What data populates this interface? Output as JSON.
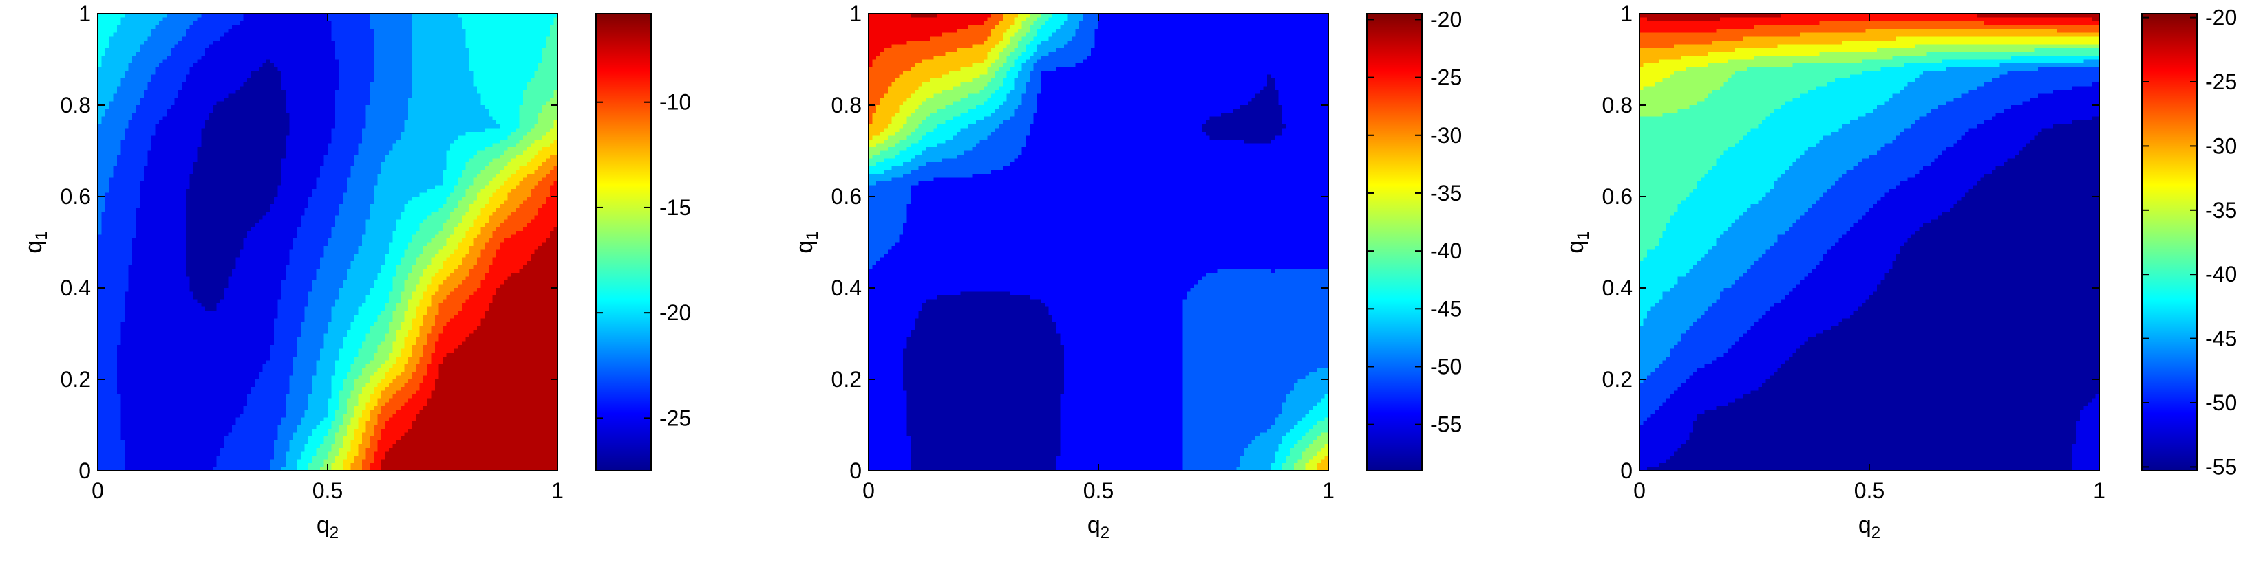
{
  "chart_data": [
    {
      "type": "contourf",
      "xlabel": "q",
      "xlabel_sub": "2",
      "ylabel": "q",
      "ylabel_sub": "1",
      "xlim": [
        0,
        1
      ],
      "ylim": [
        0,
        1
      ],
      "xticks": [
        "0",
        "0.5",
        "1"
      ],
      "yticks": [
        "0",
        "0.2",
        "0.4",
        "0.6",
        "0.8",
        "1"
      ],
      "colormap": "jet",
      "clim": [
        -27.5,
        -5.8
      ],
      "colorbar_ticks": [
        "-10",
        "-15",
        "-20",
        "-25"
      ],
      "colorbar_tick_values": [
        -10,
        -15,
        -20,
        -25
      ],
      "levels": [
        -26,
        -24.5,
        -23,
        -21.5,
        -20,
        -18.5,
        -17,
        -15.5,
        -14,
        -12.5,
        -11,
        -9.5,
        -8
      ],
      "field": {
        "x": [
          0,
          0.125,
          0.25,
          0.375,
          0.5,
          0.625,
          0.75,
          0.875,
          1
        ],
        "y": [
          0,
          0.125,
          0.25,
          0.375,
          0.5,
          0.625,
          0.75,
          0.875,
          1
        ],
        "z": [
          [
            -24,
            -25,
            -24.5,
            -23,
            -16,
            -7,
            -5.8,
            -5.8,
            -5.8
          ],
          [
            -24,
            -25.3,
            -25,
            -24,
            -20,
            -10,
            -6.5,
            -5.8,
            -5.8
          ],
          [
            -24,
            -25.5,
            -25.3,
            -24.5,
            -21,
            -16,
            -8,
            -6.5,
            -5.8
          ],
          [
            -23.5,
            -25.6,
            -26.2,
            -25,
            -22,
            -19,
            -11,
            -7.5,
            -6.2
          ],
          [
            -23,
            -25.4,
            -26.6,
            -25.5,
            -23,
            -20.5,
            -16,
            -9.5,
            -7.5
          ],
          [
            -22.5,
            -25.2,
            -26.6,
            -26.4,
            -24,
            -21,
            -20,
            -14,
            -9
          ],
          [
            -21.5,
            -24.5,
            -26.3,
            -26.6,
            -24.8,
            -22,
            -20.5,
            -20,
            -15
          ],
          [
            -20,
            -23,
            -25.5,
            -26.2,
            -25,
            -22.5,
            -20.5,
            -19.5,
            -18
          ],
          [
            -19,
            -21,
            -23.5,
            -25.2,
            -24.5,
            -22.5,
            -20.2,
            -19.5,
            -18.5
          ]
        ]
      }
    },
    {
      "type": "contourf",
      "xlabel": "q",
      "xlabel_sub": "2",
      "ylabel": "q",
      "ylabel_sub": "1",
      "xlim": [
        0,
        1
      ],
      "ylim": [
        0,
        1
      ],
      "xticks": [
        "0",
        "0.5",
        "1"
      ],
      "yticks": [
        "0",
        "0.2",
        "0.4",
        "0.6",
        "0.8",
        "1"
      ],
      "colormap": "jet",
      "clim": [
        -59,
        -19.5
      ],
      "colorbar_ticks": [
        "-20",
        "-25",
        "-30",
        "-35",
        "-40",
        "-45",
        "-50",
        "-55"
      ],
      "colorbar_tick_values": [
        -20,
        -25,
        -30,
        -35,
        -40,
        -45,
        -50,
        -55
      ],
      "levels": [
        -56,
        -52,
        -49,
        -46,
        -43,
        -40,
        -37,
        -34,
        -30,
        -26,
        -22
      ],
      "field": {
        "x": [
          0,
          0.125,
          0.25,
          0.375,
          0.5,
          0.625,
          0.75,
          0.875,
          1
        ],
        "y": [
          0,
          0.125,
          0.25,
          0.375,
          0.5,
          0.625,
          0.75,
          0.875,
          1
        ],
        "z": [
          [
            -53,
            -57,
            -57,
            -56.8,
            -54,
            -53,
            -51,
            -46,
            -30
          ],
          [
            -53,
            -57.5,
            -57.5,
            -57,
            -54,
            -53,
            -51,
            -50,
            -44
          ],
          [
            -54,
            -57.5,
            -57.8,
            -57.5,
            -54,
            -53,
            -51,
            -51,
            -50
          ],
          [
            -53,
            -56,
            -56.5,
            -56,
            -54,
            -53,
            -51,
            -51,
            -51
          ],
          [
            -51,
            -53,
            -53.5,
            -53.5,
            -53,
            -53,
            -53,
            -53,
            -53
          ],
          [
            -49,
            -53,
            -53,
            -53,
            -53,
            -53,
            -53,
            -53,
            -53
          ],
          [
            -30,
            -42,
            -48,
            -53,
            -53,
            -53,
            -56.8,
            -57,
            -53
          ],
          [
            -26,
            -32,
            -36,
            -52,
            -53,
            -53,
            -53,
            -56,
            -53
          ],
          [
            -24,
            -21,
            -24,
            -40,
            -52,
            -53,
            -53,
            -53,
            -53
          ]
        ]
      }
    },
    {
      "type": "contourf",
      "xlabel": "q",
      "xlabel_sub": "2",
      "ylabel": "q",
      "ylabel_sub": "1",
      "xlim": [
        0,
        1
      ],
      "ylim": [
        0,
        1
      ],
      "xticks": [
        "0",
        "0.5",
        "1"
      ],
      "yticks": [
        "0",
        "0.2",
        "0.4",
        "0.6",
        "0.8",
        "1"
      ],
      "colormap": "jet",
      "clim": [
        -55.3,
        -19.7
      ],
      "colorbar_ticks": [
        "-20",
        "-25",
        "-30",
        "-35",
        "-40",
        "-45",
        "-50",
        "-55"
      ],
      "colorbar_tick_values": [
        -20,
        -25,
        -30,
        -35,
        -40,
        -45,
        -50,
        -55
      ],
      "levels": [
        -53,
        -50,
        -47,
        -44,
        -41,
        -38,
        -35,
        -32,
        -29,
        -26,
        -23
      ],
      "field": {
        "x": [
          0,
          0.125,
          0.25,
          0.375,
          0.5,
          0.625,
          0.75,
          0.875,
          1
        ],
        "y": [
          0,
          0.125,
          0.25,
          0.375,
          0.5,
          0.625,
          0.75,
          0.875,
          1
        ],
        "z": [
          [
            -53,
            -54,
            -55,
            -55,
            -55,
            -55,
            -55,
            -55,
            -51
          ],
          [
            -49,
            -53,
            -54,
            -55,
            -55,
            -55,
            -55,
            -55,
            -52
          ],
          [
            -45,
            -49,
            -51.5,
            -54,
            -55,
            -55,
            -55,
            -55,
            -55
          ],
          [
            -43,
            -46,
            -49,
            -51,
            -53,
            -55,
            -55,
            -55,
            -55
          ],
          [
            -40,
            -43,
            -46,
            -49,
            -51.5,
            -54,
            -55,
            -55,
            -55
          ],
          [
            -39,
            -41,
            -43,
            -46,
            -49,
            -51,
            -53.5,
            -55,
            -55
          ],
          [
            -39,
            -39.5,
            -41,
            -43,
            -45,
            -48,
            -50.5,
            -53,
            -54
          ],
          [
            -33,
            -36,
            -39,
            -40,
            -41,
            -44,
            -46,
            -48,
            -49
          ],
          [
            -22,
            -21,
            -22,
            -23,
            -24,
            -24,
            -22,
            -21,
            -20
          ]
        ]
      }
    }
  ]
}
